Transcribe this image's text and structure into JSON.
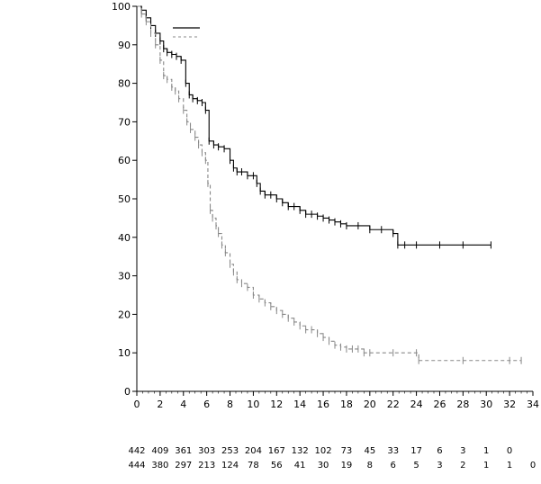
{
  "chart_data": {
    "type": "line",
    "chart_kind": "kaplan-meier survival curve",
    "title": "",
    "xlabel": "",
    "ylabel": "",
    "xlim": [
      0,
      34
    ],
    "ylim": [
      0,
      100
    ],
    "x_ticks": [
      "0",
      "2",
      "4",
      "6",
      "8",
      "10",
      "12",
      "14",
      "16",
      "18",
      "20",
      "22",
      "24",
      "26",
      "28",
      "30",
      "32",
      "34"
    ],
    "y_ticks": [
      "0",
      "10",
      "20",
      "30",
      "40",
      "50",
      "60",
      "70",
      "80",
      "90",
      "100"
    ],
    "legend": {
      "placement": "top-left",
      "entries": [
        "",
        ""
      ]
    },
    "series": [
      {
        "name": "",
        "style": "solid",
        "color": "#000000",
        "x": [
          0,
          0.4,
          0.8,
          1.2,
          1.6,
          2.0,
          2.3,
          2.6,
          3.0,
          3.4,
          3.8,
          4.2,
          4.5,
          4.8,
          5.2,
          5.6,
          5.9,
          6.2,
          6.6,
          7.0,
          7.5,
          8.0,
          8.3,
          8.6,
          9.0,
          9.5,
          10.0,
          10.3,
          10.6,
          11.0,
          11.5,
          12.0,
          12.5,
          13.0,
          13.5,
          14.0,
          14.5,
          15.0,
          15.5,
          16.0,
          16.5,
          17.0,
          17.5,
          18.0,
          19.0,
          20.0,
          21.0,
          22.0,
          22.4,
          23.0,
          24.0,
          26.0,
          28.0,
          30.4
        ],
        "values": [
          100,
          99,
          97,
          95,
          93,
          91,
          89,
          88,
          87.5,
          87,
          86,
          80,
          77,
          76,
          75.5,
          75,
          73,
          65,
          64,
          63.5,
          63,
          60,
          58,
          57,
          57,
          56,
          56,
          54,
          52,
          51,
          51,
          50,
          49,
          48,
          48,
          47,
          46,
          46,
          45.5,
          45,
          44.5,
          44,
          43.5,
          43,
          43,
          42,
          42,
          41,
          38,
          38,
          38,
          38,
          38,
          38
        ]
      },
      {
        "name": "",
        "style": "dashed",
        "color": "#888888",
        "x": [
          0,
          0.4,
          0.8,
          1.2,
          1.6,
          2.0,
          2.3,
          2.6,
          3.0,
          3.3,
          3.6,
          4.0,
          4.3,
          4.6,
          5.0,
          5.3,
          5.6,
          5.9,
          6.1,
          6.3,
          6.5,
          6.8,
          7.0,
          7.3,
          7.6,
          8.0,
          8.3,
          8.6,
          9.0,
          9.5,
          10.0,
          10.5,
          11.0,
          11.5,
          12.0,
          12.5,
          13.0,
          13.5,
          14.0,
          14.5,
          15.0,
          15.5,
          16.0,
          16.5,
          17.0,
          17.5,
          18.0,
          18.5,
          19.0,
          19.5,
          20.0,
          22.0,
          24.0,
          24.2,
          28.0,
          32.0,
          33.0
        ],
        "values": [
          100,
          98,
          96,
          93,
          90,
          86,
          82,
          81,
          79,
          78,
          76,
          73,
          70,
          68,
          66,
          64,
          62,
          60,
          54,
          47,
          45,
          43,
          41,
          38,
          36,
          33,
          31,
          29,
          28,
          27,
          25,
          24,
          23,
          22,
          21,
          20,
          19,
          18,
          17,
          16,
          16,
          15,
          14,
          13,
          12,
          11.5,
          11,
          11,
          11,
          10,
          10,
          10,
          10,
          8,
          8,
          8,
          8
        ]
      }
    ],
    "number_at_risk": [
      {
        "x": [
          0,
          2,
          4,
          6,
          8,
          10,
          12,
          14,
          16,
          18,
          20,
          22,
          24,
          26,
          28,
          30,
          32
        ],
        "counts": [
          "442",
          "409",
          "361",
          "303",
          "253",
          "204",
          "167",
          "132",
          "102",
          "73",
          "45",
          "33",
          "17",
          "6",
          "3",
          "1",
          "0"
        ]
      },
      {
        "x": [
          0,
          2,
          4,
          6,
          8,
          10,
          12,
          14,
          16,
          18,
          20,
          22,
          24,
          26,
          28,
          30,
          32,
          34
        ],
        "counts": [
          "444",
          "380",
          "297",
          "213",
          "124",
          "78",
          "56",
          "41",
          "30",
          "19",
          "8",
          "6",
          "5",
          "3",
          "2",
          "1",
          "1",
          "0"
        ]
      }
    ]
  }
}
